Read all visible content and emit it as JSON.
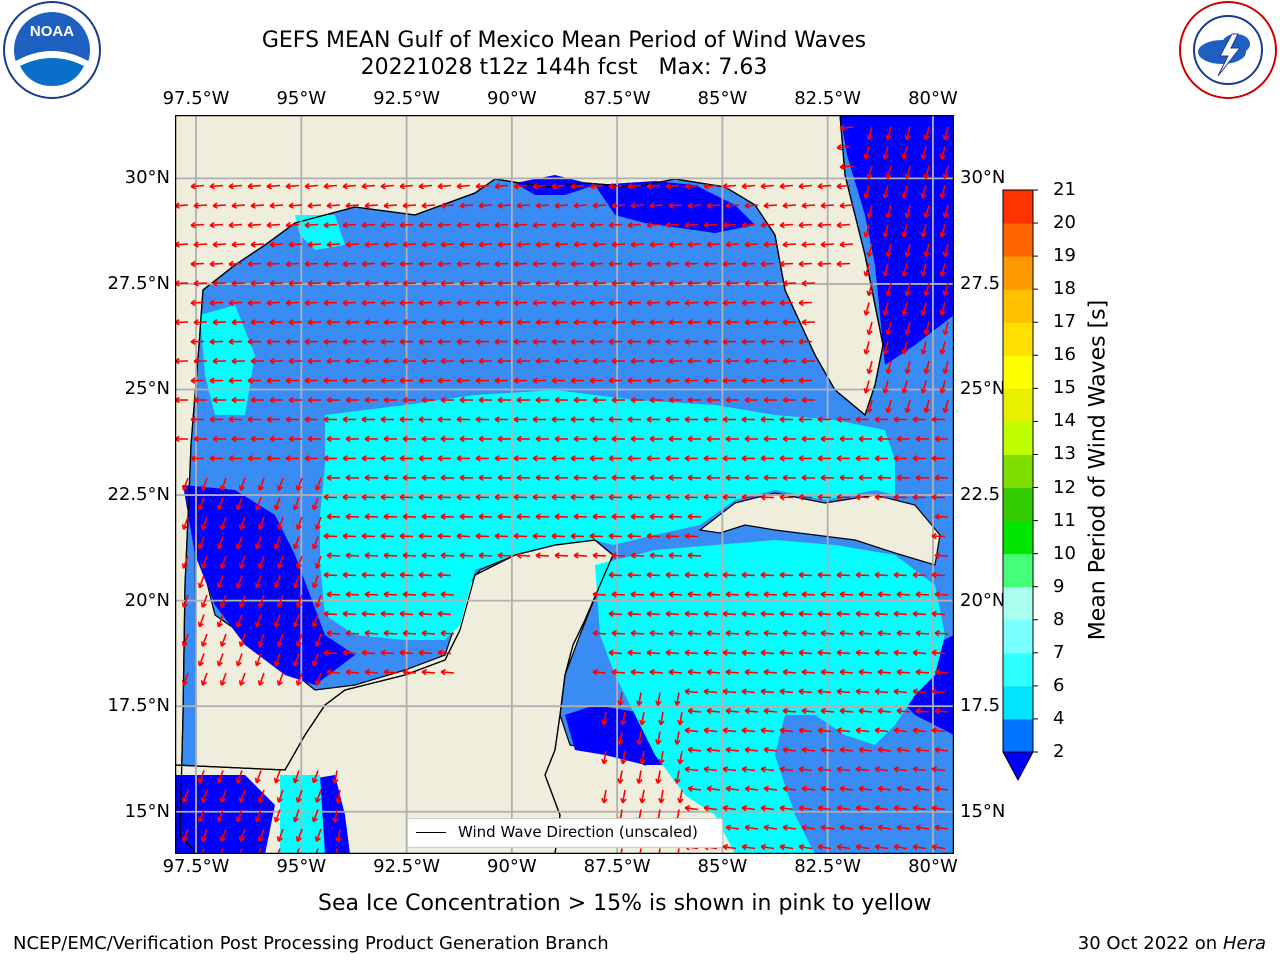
{
  "title": {
    "line1": "GEFS MEAN Gulf of Mexico Mean Period of Wind Waves",
    "line2": "20221028 t12z 144h fcst   Max: 7.63"
  },
  "logos": {
    "noaa": {
      "text": "NOAA",
      "ring_text": "NATIONAL OCEANIC AND ATMOSPHERIC ADMINISTRATION · U.S. DEPARTMENT OF COMMERCE"
    },
    "nws": {
      "ring_text": "NATIONAL WEATHER SERVICE"
    }
  },
  "map": {
    "longitude_ticks": [
      "97.5°W",
      "95°W",
      "92.5°W",
      "90°W",
      "87.5°W",
      "85°W",
      "82.5°W",
      "80°W"
    ],
    "latitude_ticks": [
      "30°N",
      "27.5°N",
      "25°N",
      "22.5°N",
      "20°N",
      "17.5°N",
      "15°N"
    ],
    "latitude_ticks_right": [
      "30°N",
      "27.5",
      "25°N",
      "22.5",
      "20°N",
      "17.5",
      "15°N"
    ],
    "extent": {
      "lon": [
        -98,
        -79.5
      ],
      "lat": [
        14,
        31.5
      ]
    },
    "colors": {
      "land": "#efeddc",
      "ocean_2_4": "#3a8cf5",
      "ocean_under_2": "#0000ff",
      "ocean_4_6": "#00ffff",
      "arrows": "#ff0000",
      "grid": "#b0b0b0"
    },
    "legend": "Wind Wave Direction (unscaled)"
  },
  "colorbar": {
    "label": "Mean Period of Wind Waves [s]",
    "ticks": [
      "21",
      "20",
      "19",
      "18",
      "17",
      "16",
      "15",
      "14",
      "13",
      "12",
      "11",
      "10",
      "9",
      "8",
      "7",
      "6",
      "4",
      "2"
    ],
    "levels": [
      2,
      4,
      6,
      7,
      8,
      9,
      10,
      11,
      12,
      13,
      14,
      15,
      16,
      17,
      18,
      19,
      20,
      21
    ],
    "extend": "min",
    "colors": [
      "#0073ff",
      "#00e4ff",
      "#30ffff",
      "#78ffff",
      "#aaffee",
      "#44ff77",
      "#00e600",
      "#33cc00",
      "#7fe000",
      "#c0ff00",
      "#e8f000",
      "#ffff00",
      "#ffe000",
      "#ffc000",
      "#ff9900",
      "#ff6600",
      "#ff3300",
      "#ff0000"
    ],
    "extend_color": "#0000ff"
  },
  "subtitle": "Sea Ice Concentration > 15% is shown in pink to yellow",
  "footer": {
    "left": "NCEP/EMC/Verification Post Processing Product Generation Branch",
    "right_date": "30 Oct 2022 on ",
    "right_machine": "Hera"
  }
}
